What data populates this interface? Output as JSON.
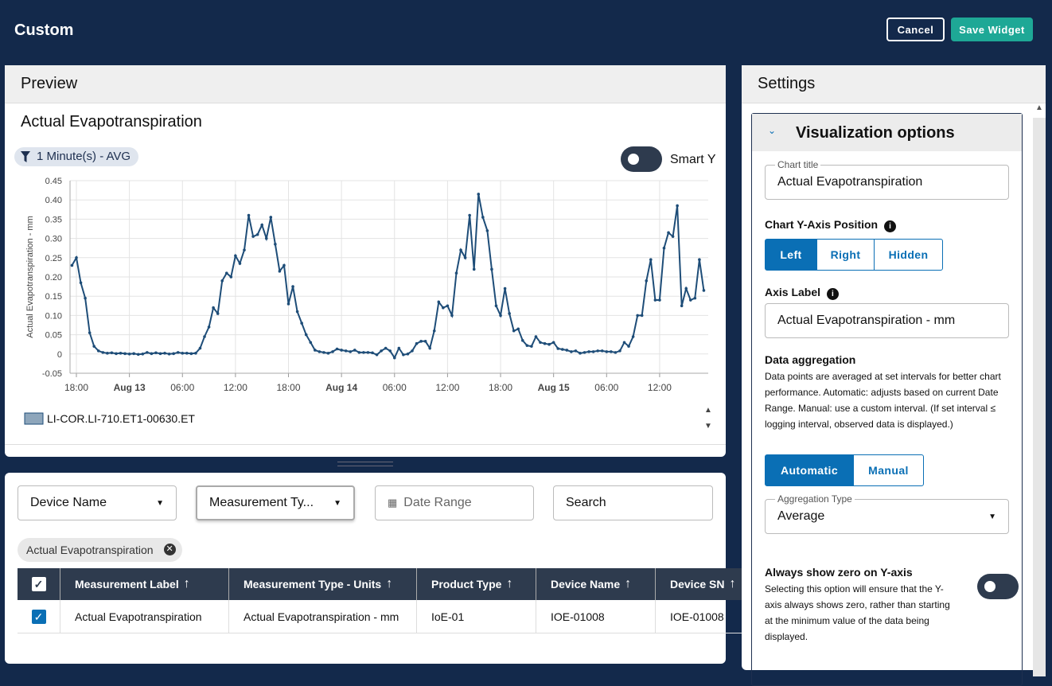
{
  "header": {
    "title": "Custom",
    "cancel": "Cancel",
    "save": "Save Widget"
  },
  "preview": {
    "title": "Preview",
    "filter_chip": "1 Minute(s) - AVG",
    "smart_y": "Smart Y"
  },
  "chart_data": {
    "type": "line",
    "title": "Actual Evapotranspiration",
    "y_label": "Actual Evapotranspiration - mm",
    "x": [
      -0.5,
      0,
      0.5,
      1,
      1.5,
      2,
      2.5,
      3,
      3.5,
      4,
      4.5,
      5,
      5.5,
      6,
      6.5,
      7,
      7.5,
      8,
      8.5,
      9,
      9.5,
      10,
      10.5,
      11,
      11.5,
      12,
      12.5,
      13,
      13.5,
      14,
      14.5,
      15,
      15.5,
      16,
      16.5,
      17,
      17.5,
      18,
      18.5,
      19,
      19.5,
      20,
      20.5,
      21,
      21.5,
      22,
      22.5,
      23,
      23.5,
      24,
      24.5,
      25,
      25.5,
      26,
      26.5,
      27,
      27.5,
      28,
      28.5,
      29,
      29.5,
      30,
      30.5,
      31,
      31.5,
      32,
      32.5,
      33,
      33.5,
      34,
      34.5,
      35,
      35.5,
      36,
      36.5,
      37,
      37.5,
      38,
      38.5,
      39,
      39.5,
      40,
      40.5,
      41,
      41.5,
      42,
      42.5,
      43,
      43.5,
      44,
      44.5,
      45,
      45.5,
      46,
      46.5,
      47,
      47.5,
      48,
      48.5,
      49,
      49.5,
      50,
      50.5,
      51,
      51.5,
      52,
      52.5,
      53,
      53.5,
      54,
      54.5,
      55,
      55.5,
      56,
      56.5,
      57,
      57.5,
      58,
      58.5,
      59,
      59.5,
      60,
      60.5,
      61,
      61.5,
      62,
      62.5,
      63,
      63.5,
      64,
      64.5,
      65,
      65.5,
      66,
      66.5,
      67,
      67.5,
      68,
      68.5,
      69,
      69.5,
      70,
      70.5,
      71
    ],
    "series": [
      {
        "name": "LI-COR.LI-710.ET1-00630.ET",
        "color": "#1e4d78",
        "values": [
          0.23,
          0.25,
          0.185,
          0.145,
          0.055,
          0.02,
          0.008,
          0.004,
          0.002,
          0.003,
          0.001,
          0.002,
          0.001,
          0,
          0.001,
          -0.001,
          0,
          0.004,
          0.001,
          0.003,
          0.001,
          0.002,
          0,
          0.001,
          0.004,
          0.002,
          0.002,
          0.001,
          0.002,
          0.015,
          0.045,
          0.07,
          0.12,
          0.105,
          0.19,
          0.21,
          0.2,
          0.255,
          0.235,
          0.27,
          0.36,
          0.305,
          0.31,
          0.335,
          0.3,
          0.355,
          0.285,
          0.215,
          0.23,
          0.13,
          0.175,
          0.11,
          0.08,
          0.05,
          0.03,
          0.01,
          0.006,
          0.004,
          0.002,
          0.006,
          0.013,
          0.01,
          0.008,
          0.006,
          0.01,
          0.004,
          0.004,
          0.004,
          0.003,
          -0.002,
          0.008,
          0.015,
          0.008,
          -0.01,
          0.015,
          -0.002,
          0,
          0.008,
          0.027,
          0.033,
          0.033,
          0.015,
          0.06,
          0.135,
          0.12,
          0.125,
          0.1,
          0.21,
          0.27,
          0.25,
          0.36,
          0.22,
          0.415,
          0.355,
          0.32,
          0.22,
          0.125,
          0.1,
          0.17,
          0.105,
          0.06,
          0.065,
          0.035,
          0.022,
          0.02,
          0.045,
          0.03,
          0.027,
          0.025,
          0.03,
          0.014,
          0.012,
          0.01,
          0.006,
          0.008,
          0.002,
          0.004,
          0.006,
          0.006,
          0.008,
          0.008,
          0.006,
          0.006,
          0.004,
          0.008,
          0.03,
          0.02,
          0.045,
          0.1,
          0.1,
          0.19,
          0.245,
          0.14,
          0.14,
          0.275,
          0.315,
          0.305,
          0.385,
          0.125,
          0.17,
          0.14,
          0.145,
          0.245,
          0.165
        ]
      }
    ],
    "xlim": [
      -0.72,
      71.5
    ],
    "xticks": [
      {
        "value": 0,
        "label": "18:00"
      },
      {
        "value": 6,
        "label": "Aug 13"
      },
      {
        "value": 12,
        "label": "06:00"
      },
      {
        "value": 18,
        "label": "12:00"
      },
      {
        "value": 24,
        "label": "18:00"
      },
      {
        "value": 30,
        "label": "Aug 14"
      },
      {
        "value": 36,
        "label": "06:00"
      },
      {
        "value": 42,
        "label": "12:00"
      },
      {
        "value": 48,
        "label": "18:00"
      },
      {
        "value": 54,
        "label": "Aug 15"
      },
      {
        "value": 60,
        "label": "06:00"
      },
      {
        "value": 66,
        "label": "12:00"
      }
    ],
    "ylim": [
      -0.05,
      0.45
    ],
    "yticks": [
      0.45,
      {
        "value": 0.4,
        "label": "0.40"
      },
      0.35,
      {
        "value": 0.3,
        "label": "0.30"
      },
      0.25,
      {
        "value": 0.2,
        "label": "0.20"
      },
      0.15,
      {
        "value": 0.1,
        "label": "0.10"
      },
      0.05,
      0,
      -0.05
    ],
    "grid": true
  },
  "filters": {
    "device_name": "Device Name",
    "measurement_type": "Measurement Ty...",
    "date_range": "Date Range",
    "search": "Search",
    "chip": "Actual Evapotranspiration"
  },
  "table": {
    "columns": [
      "Measurement Label",
      "Measurement Type - Units",
      "Product Type",
      "Device Name",
      "Device SN"
    ],
    "rows": [
      [
        "Actual Evapotranspiration",
        "Actual Evapotranspiration - mm",
        "IoE-01",
        "IOE-01008",
        "IOE-01008"
      ]
    ]
  },
  "settings": {
    "title": "Settings",
    "section": "Visualization options",
    "chart_title": {
      "label": "Chart title",
      "value": "Actual Evapotranspiration"
    },
    "y_axis_position": {
      "label": "Chart Y-Axis Position",
      "options": [
        "Left",
        "Right",
        "Hidden"
      ]
    },
    "axis_label": {
      "label": "Axis Label",
      "value": "Actual Evapotranspiration - mm"
    },
    "aggregation": {
      "label": "Data aggregation",
      "description": "Data points are averaged at set intervals for better chart performance. Automatic: adjusts based on current Date Range. Manual: use a custom interval. (If set interval ≤ logging interval, observed data is displayed.)",
      "options": [
        "Automatic",
        "Manual"
      ],
      "type_label": "Aggregation Type",
      "type_value": "Average"
    },
    "zero": {
      "label": "Always show zero on Y-axis",
      "description": "Selecting this option will ensure that the Y-axis always shows zero, rather than starting at the minimum value of the data being displayed."
    }
  }
}
